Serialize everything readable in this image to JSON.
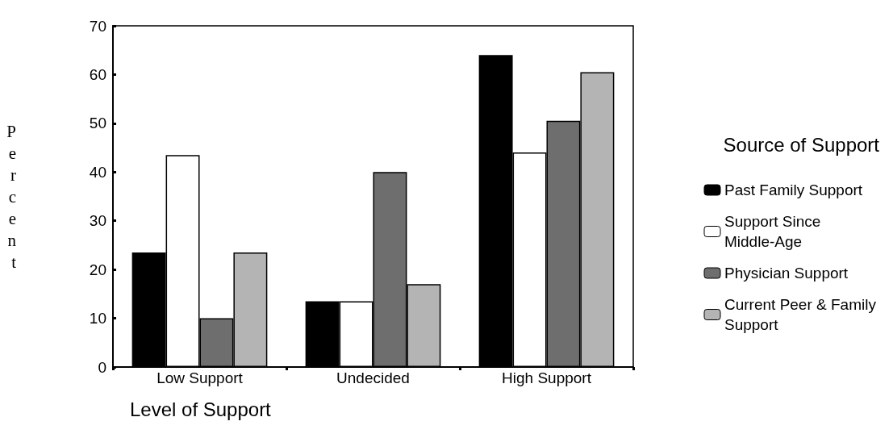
{
  "chart_data": {
    "type": "bar",
    "xlabel": "Level of Support",
    "ylabel": "Percent",
    "legend_title": "Source of Support",
    "categories": [
      "Low Support",
      "Undecided",
      "High Support"
    ],
    "series": [
      {
        "name": "Past Family Support",
        "color": "#000000",
        "values": [
          23.5,
          13.5,
          64
        ]
      },
      {
        "name": "Support Since Middle-Age",
        "color": "#ffffff",
        "values": [
          43.5,
          13.5,
          44
        ]
      },
      {
        "name": "Physician Support",
        "color": "#6e6e6e",
        "values": [
          10,
          40,
          50.5
        ]
      },
      {
        "name": "Current Peer & Family Support",
        "color": "#b4b4b4",
        "values": [
          23.5,
          17,
          60.5
        ]
      }
    ],
    "ylim": [
      0,
      70
    ],
    "yticks": [
      0,
      10,
      20,
      30,
      40,
      50,
      60,
      70
    ],
    "grid": false,
    "legend": "right"
  }
}
